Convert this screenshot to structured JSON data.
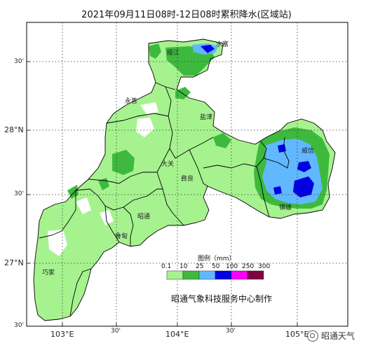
{
  "title": "2021年09月11日08时-12日08时累积降水(区域站)",
  "lon_ticks": {
    "e103": "103°E",
    "m103_30": "30'",
    "e104": "104°E",
    "m104_30": "30'",
    "e105": "105°E"
  },
  "lat_ticks": {
    "top_30": "30'",
    "n28": "28°N",
    "mid_30": "30'",
    "n27": "27°N",
    "bottom_30": "30'"
  },
  "places": {
    "suijiang": "绥江",
    "shuifu": "水富",
    "yongshan": "永善",
    "yanjin": "盐津",
    "daguan": "大关",
    "yiliang": "彝良",
    "weixin": "威信",
    "zhenxiong": "镇雄",
    "zhaotong": "昭通",
    "ludian": "鲁甸",
    "qiaojia": "巧家"
  },
  "legend": {
    "title": "图例（mm）",
    "breaks": [
      "0.1",
      "10",
      "25",
      "50",
      "100",
      "250",
      "300"
    ],
    "colors": [
      "#a6f28f",
      "#3dba3d",
      "#61b8ff",
      "#0000e1",
      "#fa00fa",
      "#800040"
    ]
  },
  "credit": "昭通气象科技服务中心制作",
  "watermark": "昭通天气"
}
